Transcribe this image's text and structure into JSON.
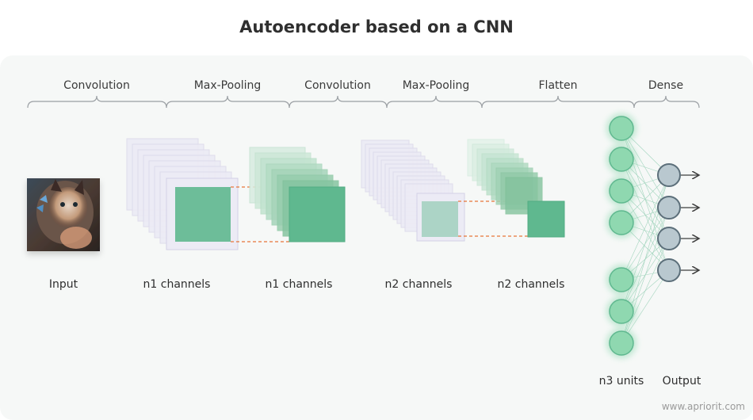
{
  "title": "Autoencoder based on a CNN",
  "stages": [
    "Convolution",
    "Max-Pooling",
    "Convolution",
    "Max-Pooling",
    "Flatten",
    "Dense"
  ],
  "captions": {
    "input": "Input",
    "conv1": "n1 channels",
    "pool1": "n1 channels",
    "conv2": "n2 channels",
    "pool2": "n2 channels",
    "units": "n3 units",
    "output": "Output"
  },
  "dense": {
    "input_units_shown": 7,
    "output_units": 4
  },
  "colors": {
    "accent": "#5fb88f",
    "unit_fill": "#8fd8b0",
    "output_fill": "#b9c8cf",
    "connector": "#e8763a",
    "stack_light": "#ecebf5",
    "stack_green": "#d7ece0"
  },
  "watermark": "www.apriorit.com"
}
